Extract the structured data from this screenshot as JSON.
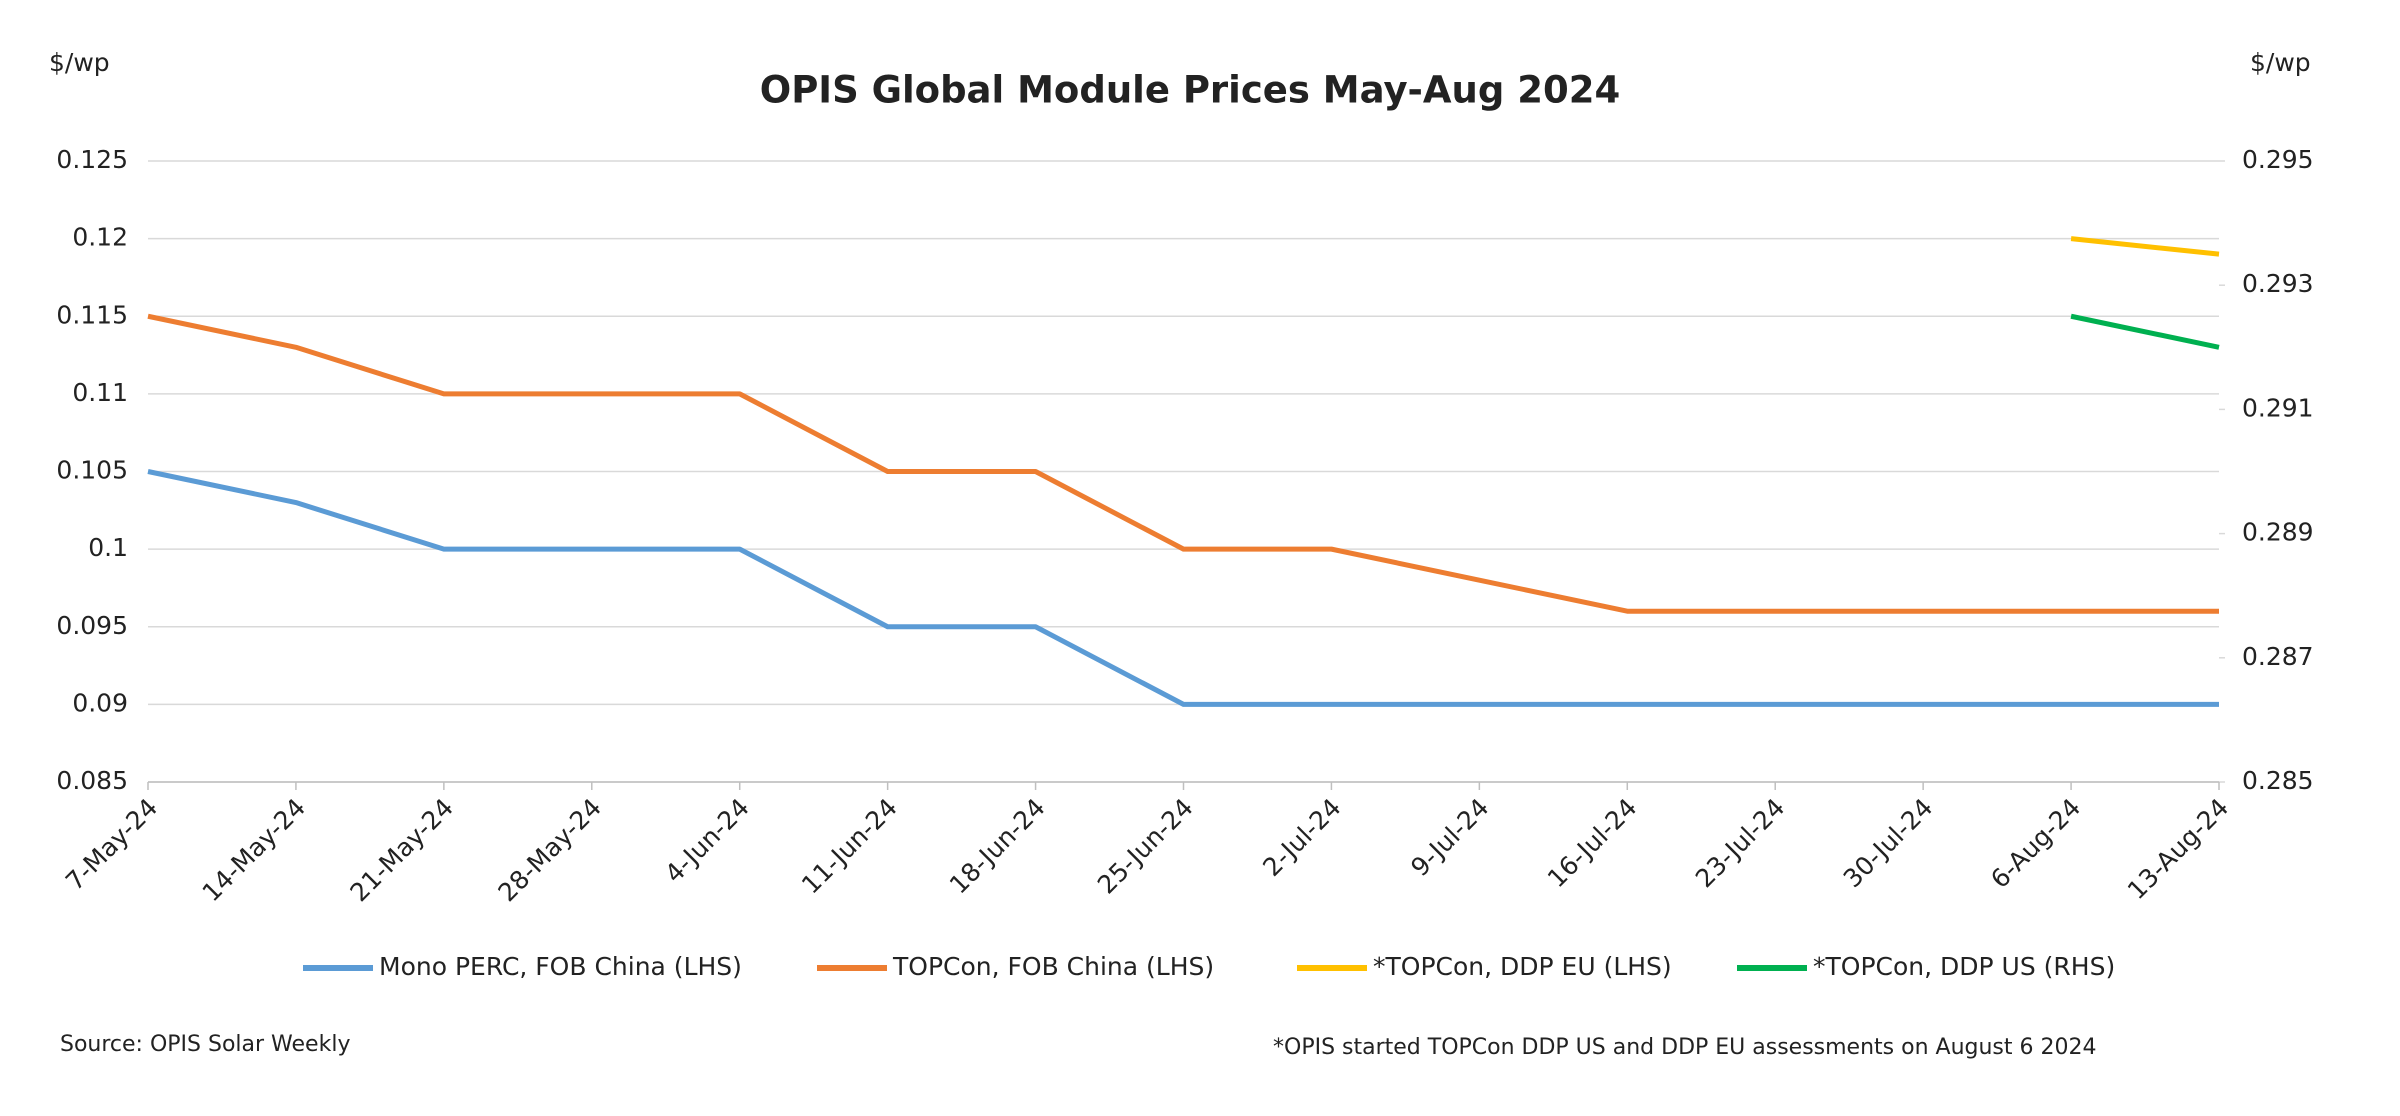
{
  "chart_data": {
    "type": "line",
    "title": "OPIS Global Module Prices May-Aug 2024",
    "y_label": "$/wp",
    "y2_label": "$/wp",
    "source": "Source: OPIS Solar Weekly",
    "note": "*OPIS started TOPCon DDP US and DDP EU assessments on August 6 2024",
    "categories": [
      "7-May-24",
      "14-May-24",
      "21-May-24",
      "28-May-24",
      "4-Jun-24",
      "11-Jun-24",
      "18-Jun-24",
      "25-Jun-24",
      "2-Jul-24",
      "9-Jul-24",
      "16-Jul-24",
      "23-Jul-24",
      "30-Jul-24",
      "6-Aug-24",
      "13-Aug-24"
    ],
    "series": [
      {
        "name": "Mono PERC, FOB China (LHS)",
        "color": "#5b9bd5",
        "values": [
          0.105,
          0.103,
          0.1,
          0.1,
          0.1,
          0.095,
          0.095,
          0.09,
          0.09,
          0.09,
          0.09,
          0.09,
          0.09,
          0.09,
          0.09
        ]
      },
      {
        "name": "TOPCon, FOB China (LHS)",
        "color": "#ed7d31",
        "values": [
          0.115,
          0.113,
          0.11,
          0.11,
          0.11,
          0.105,
          0.105,
          0.1,
          0.1,
          0.098,
          0.096,
          0.096,
          0.096,
          0.096,
          0.096
        ]
      },
      {
        "name": "*TOPCon, DDP EU (LHS)",
        "color": "#ffc000",
        "values": [
          null,
          null,
          null,
          null,
          null,
          null,
          null,
          null,
          null,
          null,
          null,
          null,
          null,
          0.12,
          0.119
        ]
      },
      {
        "name": "*TOPCon, DDP US (RHS)",
        "color": "#00b050",
        "axis": "y2",
        "values": [
          null,
          null,
          null,
          null,
          null,
          null,
          null,
          null,
          null,
          null,
          null,
          null,
          null,
          0.2925,
          0.292
        ]
      }
    ],
    "ylim": [
      0.085,
      0.125
    ],
    "yticks": [
      0.085,
      0.09,
      0.095,
      0.1,
      0.105,
      0.11,
      0.115,
      0.12,
      0.125
    ],
    "y2lim": [
      0.285,
      0.295
    ],
    "y2ticks": [
      0.285,
      0.287,
      0.289,
      0.291,
      0.293,
      0.295
    ],
    "grid": true
  }
}
